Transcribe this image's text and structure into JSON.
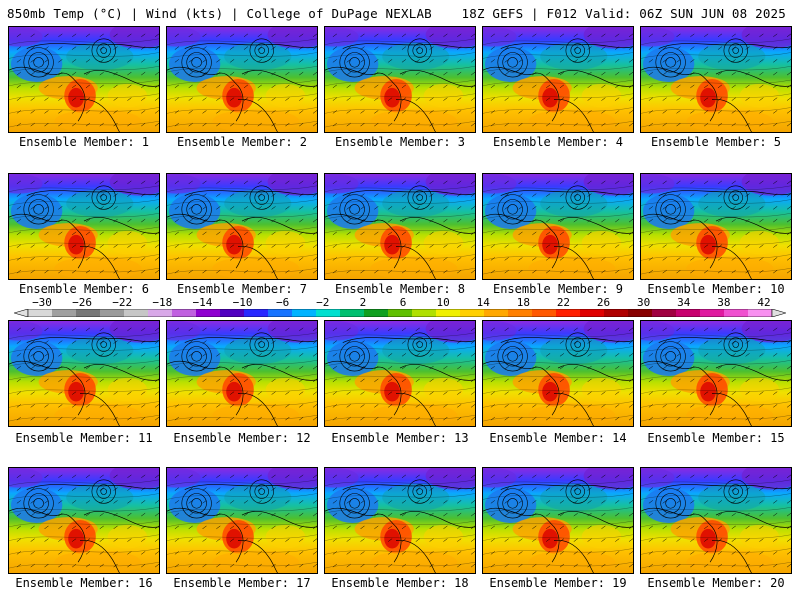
{
  "header": {
    "left": "850mb Temp (°C) | Wind (kts) | College of DuPage NEXLAB",
    "right": "18Z GEFS | F012 Valid: 06Z SUN JUN 08 2025"
  },
  "panel_label_prefix": "Ensemble Member: ",
  "members": [
    "1",
    "2",
    "3",
    "4",
    "5",
    "6",
    "7",
    "8",
    "9",
    "10",
    "11",
    "12",
    "13",
    "14",
    "15",
    "16",
    "17",
    "18",
    "19",
    "20"
  ],
  "colorbar": {
    "labels": [
      "−30",
      "−26",
      "−22",
      "−18",
      "−14",
      "−10",
      "−6",
      "−2",
      "2",
      "6",
      "10",
      "14",
      "18",
      "22",
      "26",
      "30",
      "34",
      "38",
      "42"
    ],
    "colors": [
      "#d8d8d8",
      "#a0a0a0",
      "#787878",
      "#9a9a9a",
      "#c6c6c6",
      "#d8a8e8",
      "#c060e0",
      "#9000d0",
      "#5000c0",
      "#2828ff",
      "#1874ff",
      "#00b4ff",
      "#00e0d0",
      "#00c070",
      "#10a020",
      "#60c000",
      "#b0e000",
      "#f0f000",
      "#ffd000",
      "#ffa800",
      "#ff8000",
      "#ff5800",
      "#ff2000",
      "#e00000",
      "#b00000",
      "#880000",
      "#a00040",
      "#c8006e",
      "#e01aa0",
      "#f050d0",
      "#f890f0"
    ],
    "arrow_color": "#e0e0e0"
  }
}
